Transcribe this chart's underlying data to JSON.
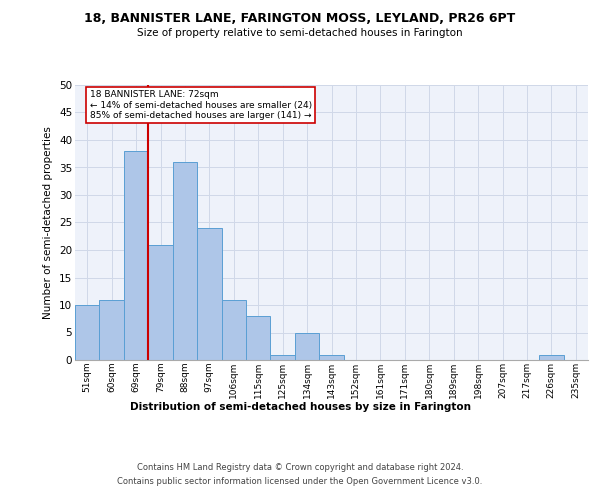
{
  "title": "18, BANNISTER LANE, FARINGTON MOSS, LEYLAND, PR26 6PT",
  "subtitle": "Size of property relative to semi-detached houses in Farington",
  "xlabel": "Distribution of semi-detached houses by size in Farington",
  "ylabel": "Number of semi-detached properties",
  "categories": [
    "51sqm",
    "60sqm",
    "69sqm",
    "79sqm",
    "88sqm",
    "97sqm",
    "106sqm",
    "115sqm",
    "125sqm",
    "134sqm",
    "143sqm",
    "152sqm",
    "161sqm",
    "171sqm",
    "180sqm",
    "189sqm",
    "198sqm",
    "207sqm",
    "217sqm",
    "226sqm",
    "235sqm"
  ],
  "values": [
    10,
    11,
    38,
    21,
    36,
    24,
    11,
    8,
    1,
    5,
    1,
    0,
    0,
    0,
    0,
    0,
    0,
    0,
    0,
    1,
    0
  ],
  "bar_color": "#aec6e8",
  "bar_edge_color": "#5a9fd4",
  "grid_color": "#d0d8e8",
  "bg_color": "#eef2fa",
  "annotation_text": "18 BANNISTER LANE: 72sqm\n← 14% of semi-detached houses are smaller (24)\n85% of semi-detached houses are larger (141) →",
  "annotation_box_color": "#ffffff",
  "annotation_box_edge": "#cc0000",
  "vline_color": "#cc0000",
  "footer_line1": "Contains HM Land Registry data © Crown copyright and database right 2024.",
  "footer_line2": "Contains public sector information licensed under the Open Government Licence v3.0.",
  "ylim": [
    0,
    50
  ],
  "yticks": [
    0,
    5,
    10,
    15,
    20,
    25,
    30,
    35,
    40,
    45,
    50
  ],
  "vline_x": 2.5
}
